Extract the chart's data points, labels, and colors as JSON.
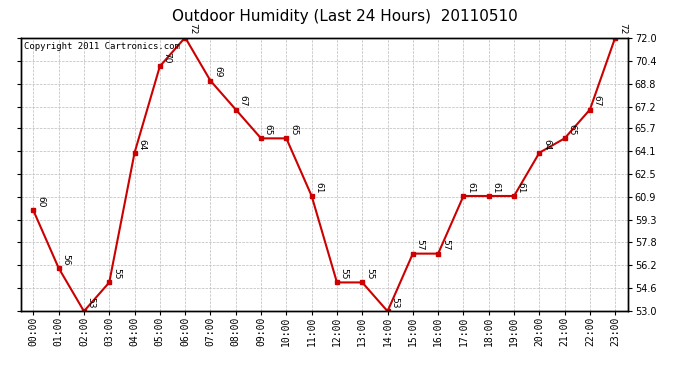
{
  "title": "Outdoor Humidity (Last 24 Hours)  20110510",
  "copyright": "Copyright 2011 Cartronics.com",
  "hours": [
    "00:00",
    "01:00",
    "02:00",
    "03:00",
    "04:00",
    "05:00",
    "06:00",
    "07:00",
    "08:00",
    "09:00",
    "10:00",
    "11:00",
    "12:00",
    "13:00",
    "14:00",
    "15:00",
    "16:00",
    "17:00",
    "18:00",
    "19:00",
    "20:00",
    "21:00",
    "22:00",
    "23:00"
  ],
  "values": [
    60,
    56,
    53,
    55,
    64,
    70,
    72,
    69,
    67,
    65,
    65,
    61,
    55,
    55,
    53,
    57,
    57,
    61,
    61,
    61,
    64,
    65,
    67,
    72
  ],
  "ylim_min": 53.0,
  "ylim_max": 72.0,
  "yticks": [
    53.0,
    54.6,
    56.2,
    57.8,
    59.3,
    60.9,
    62.5,
    64.1,
    65.7,
    67.2,
    68.8,
    70.4,
    72.0
  ],
  "line_color": "#cc0000",
  "marker_color": "#cc0000",
  "bg_color": "#ffffff",
  "grid_color": "#bbbbbb",
  "title_fontsize": 11,
  "copyright_fontsize": 6.5,
  "label_fontsize": 6.5,
  "tick_fontsize": 7
}
